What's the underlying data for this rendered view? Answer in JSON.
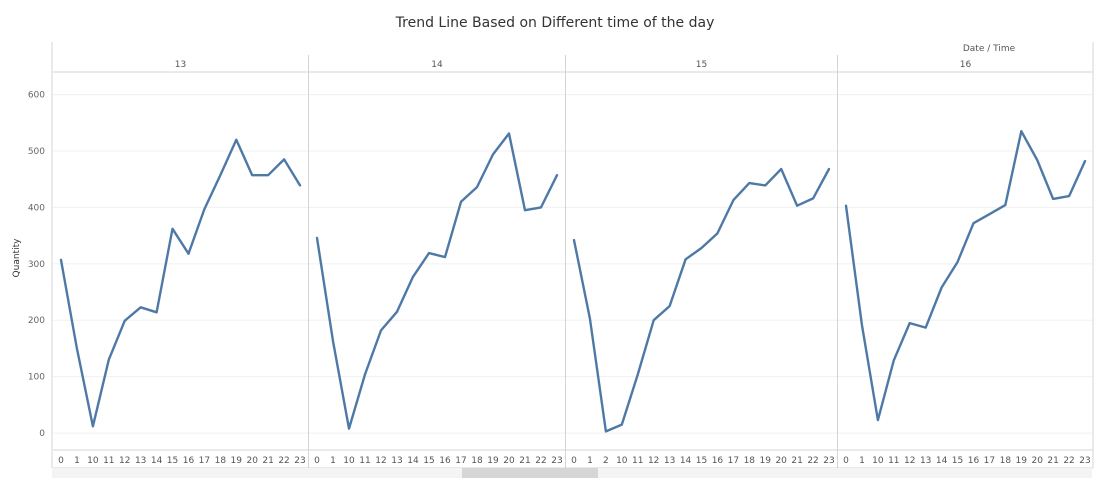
{
  "chart_data": {
    "type": "line",
    "title": "Trend Line Based on Different time of the day",
    "ylabel": "Quantity",
    "column_header": "Date / Time",
    "ylim": [
      -30,
      640
    ],
    "yticks": [
      0,
      100,
      200,
      300,
      400,
      500,
      600
    ],
    "grid": true,
    "series_color": "#4e79a7",
    "x": [
      "0",
      "1",
      "10",
      "11",
      "12",
      "13",
      "14",
      "15",
      "16",
      "17",
      "18",
      "19",
      "20",
      "21",
      "22",
      "23"
    ],
    "panels": [
      {
        "name": "13",
        "x": [
          "0",
          "1",
          "10",
          "11",
          "12",
          "13",
          "14",
          "15",
          "16",
          "17",
          "18",
          "19",
          "20",
          "21",
          "22",
          "23"
        ],
        "values": [
          307,
          150,
          12,
          130,
          199,
          223,
          214,
          362,
          318,
          397,
          457,
          520,
          457,
          457,
          485,
          439
        ]
      },
      {
        "name": "14",
        "x": [
          "0",
          "1",
          "10",
          "11",
          "12",
          "13",
          "14",
          "15",
          "16",
          "17",
          "18",
          "19",
          "20",
          "21",
          "22",
          "23"
        ],
        "values": [
          346,
          163,
          8,
          104,
          182,
          215,
          277,
          319,
          312,
          410,
          436,
          494,
          531,
          395,
          400,
          457
        ]
      },
      {
        "name": "15",
        "x": [
          "0",
          "1",
          "2",
          "10",
          "11",
          "12",
          "13",
          "14",
          "15",
          "16",
          "17",
          "18",
          "19",
          "20",
          "21",
          "22",
          "23"
        ],
        "values": [
          342,
          203,
          3,
          15,
          104,
          200,
          225,
          308,
          328,
          354,
          413,
          443,
          439,
          468,
          403,
          416,
          468
        ]
      },
      {
        "name": "16",
        "x": [
          "0",
          "1",
          "10",
          "11",
          "12",
          "13",
          "14",
          "15",
          "16",
          "17",
          "18",
          "19",
          "20",
          "21",
          "22",
          "23"
        ],
        "values": [
          403,
          192,
          23,
          129,
          195,
          187,
          258,
          303,
          372,
          388,
          404,
          535,
          484,
          415,
          420,
          482
        ]
      }
    ]
  }
}
